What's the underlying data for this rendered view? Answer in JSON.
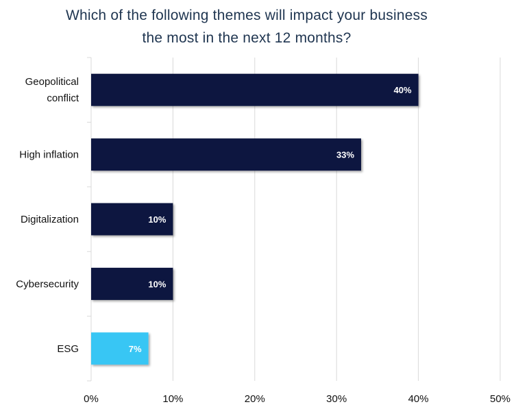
{
  "chart_data": {
    "type": "bar",
    "orientation": "horizontal",
    "title_lines": [
      "Which of the following themes will impact your business",
      "the most in the next 12 months?"
    ],
    "categories": [
      [
        "Geopolitical",
        "conflict"
      ],
      [
        "High inflation"
      ],
      [
        "Digitalization"
      ],
      [
        "Cybersecurity"
      ],
      [
        "ESG"
      ]
    ],
    "values": [
      40,
      33,
      10,
      10,
      7
    ],
    "data_labels": [
      "40%",
      "33%",
      "10%",
      "10%",
      "7%"
    ],
    "xlim": [
      0,
      50
    ],
    "xticks": [
      0,
      10,
      20,
      30,
      40,
      50
    ],
    "xtick_labels": [
      "0%",
      "10%",
      "20%",
      "30%",
      "40%",
      "50%"
    ],
    "grid": "vertical",
    "colors": {
      "default_bar": "#0f1740",
      "highlight_bar": "#38c6f4",
      "gridline": "#d9d9d9",
      "title": "#1f3550"
    },
    "highlight_index": 4
  }
}
